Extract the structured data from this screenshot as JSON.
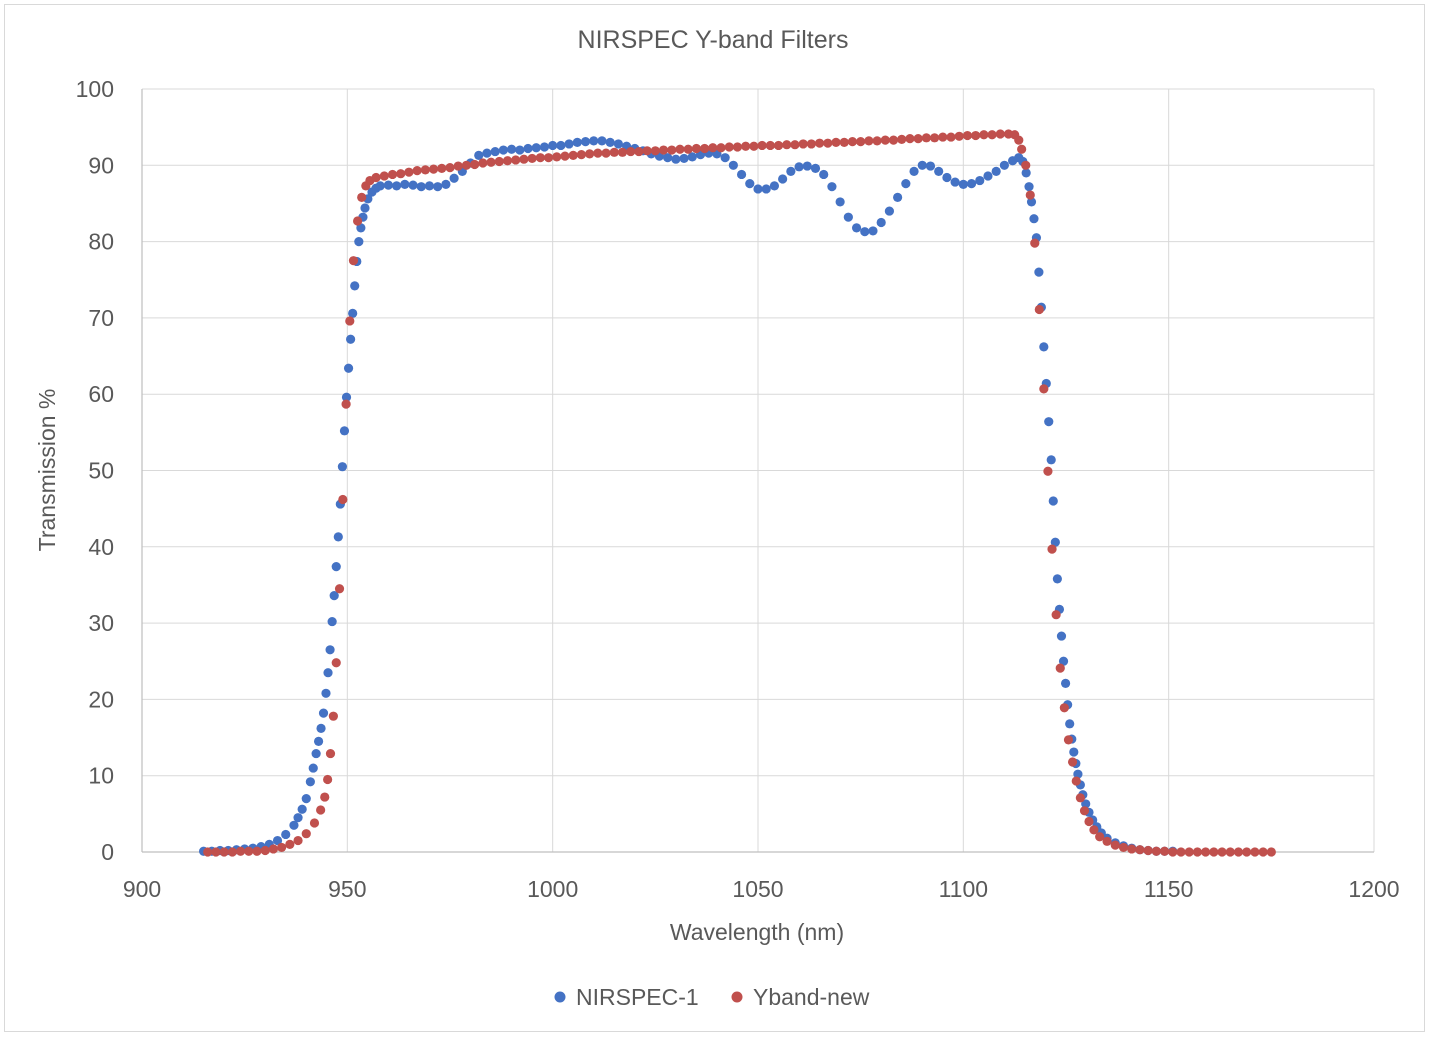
{
  "chart_data": {
    "type": "scatter",
    "title": "NIRSPEC Y-band Filters",
    "xlabel": "Wavelength (nm)",
    "ylabel": "Transmission %",
    "xlim": [
      900,
      1200
    ],
    "ylim": [
      0,
      100
    ],
    "xticks": [
      900,
      950,
      1000,
      1050,
      1100,
      1150,
      1200
    ],
    "yticks": [
      0,
      10,
      20,
      30,
      40,
      50,
      60,
      70,
      80,
      90,
      100
    ],
    "grid": true,
    "legend_position": "bottom",
    "series": [
      {
        "name": "NIRSPEC-1",
        "color": "#4472c4",
        "points": [
          [
            915,
            0.1
          ],
          [
            917,
            0.1
          ],
          [
            919,
            0.2
          ],
          [
            921,
            0.2
          ],
          [
            923,
            0.3
          ],
          [
            925,
            0.4
          ],
          [
            927,
            0.5
          ],
          [
            929,
            0.7
          ],
          [
            931,
            1.0
          ],
          [
            933,
            1.5
          ],
          [
            935,
            2.3
          ],
          [
            937,
            3.5
          ],
          [
            938,
            4.5
          ],
          [
            939,
            5.6
          ],
          [
            940,
            7.0
          ],
          [
            941,
            9.2
          ],
          [
            941.7,
            11.0
          ],
          [
            942.4,
            12.9
          ],
          [
            943,
            14.5
          ],
          [
            943.6,
            16.2
          ],
          [
            944.2,
            18.2
          ],
          [
            944.8,
            20.8
          ],
          [
            945.3,
            23.5
          ],
          [
            945.8,
            26.5
          ],
          [
            946.3,
            30.2
          ],
          [
            946.8,
            33.6
          ],
          [
            947.3,
            37.4
          ],
          [
            947.8,
            41.3
          ],
          [
            948.3,
            45.6
          ],
          [
            948.8,
            50.5
          ],
          [
            949.3,
            55.2
          ],
          [
            949.8,
            59.6
          ],
          [
            950.3,
            63.4
          ],
          [
            950.8,
            67.2
          ],
          [
            951.3,
            70.6
          ],
          [
            951.8,
            74.2
          ],
          [
            952.3,
            77.4
          ],
          [
            952.8,
            80.0
          ],
          [
            953.3,
            81.8
          ],
          [
            953.8,
            83.2
          ],
          [
            954.3,
            84.4
          ],
          [
            955,
            85.6
          ],
          [
            956,
            86.5
          ],
          [
            957,
            87.0
          ],
          [
            958,
            87.3
          ],
          [
            960,
            87.4
          ],
          [
            962,
            87.3
          ],
          [
            964,
            87.5
          ],
          [
            966,
            87.4
          ],
          [
            968,
            87.2
          ],
          [
            970,
            87.3
          ],
          [
            972,
            87.2
          ],
          [
            974,
            87.5
          ],
          [
            976,
            88.3
          ],
          [
            978,
            89.2
          ],
          [
            980,
            90.3
          ],
          [
            982,
            91.3
          ],
          [
            984,
            91.6
          ],
          [
            986,
            91.8
          ],
          [
            988,
            92.0
          ],
          [
            990,
            92.1
          ],
          [
            992,
            92.0
          ],
          [
            994,
            92.2
          ],
          [
            996,
            92.3
          ],
          [
            998,
            92.4
          ],
          [
            1000,
            92.6
          ],
          [
            1002,
            92.6
          ],
          [
            1004,
            92.8
          ],
          [
            1006,
            93.0
          ],
          [
            1008,
            93.1
          ],
          [
            1010,
            93.2
          ],
          [
            1012,
            93.2
          ],
          [
            1014,
            93.0
          ],
          [
            1016,
            92.8
          ],
          [
            1018,
            92.5
          ],
          [
            1020,
            92.2
          ],
          [
            1022,
            91.9
          ],
          [
            1024,
            91.5
          ],
          [
            1026,
            91.2
          ],
          [
            1028,
            91.0
          ],
          [
            1030,
            90.8
          ],
          [
            1032,
            90.9
          ],
          [
            1034,
            91.1
          ],
          [
            1036,
            91.4
          ],
          [
            1038,
            91.6
          ],
          [
            1040,
            91.5
          ],
          [
            1042,
            91.0
          ],
          [
            1044,
            90.0
          ],
          [
            1046,
            88.8
          ],
          [
            1048,
            87.6
          ],
          [
            1050,
            86.9
          ],
          [
            1052,
            86.9
          ],
          [
            1054,
            87.3
          ],
          [
            1056,
            88.2
          ],
          [
            1058,
            89.2
          ],
          [
            1060,
            89.8
          ],
          [
            1062,
            89.9
          ],
          [
            1064,
            89.6
          ],
          [
            1066,
            88.8
          ],
          [
            1068,
            87.2
          ],
          [
            1070,
            85.2
          ],
          [
            1072,
            83.2
          ],
          [
            1074,
            81.8
          ],
          [
            1076,
            81.3
          ],
          [
            1078,
            81.4
          ],
          [
            1080,
            82.5
          ],
          [
            1082,
            84.0
          ],
          [
            1084,
            85.8
          ],
          [
            1086,
            87.6
          ],
          [
            1088,
            89.2
          ],
          [
            1090,
            90.0
          ],
          [
            1092,
            89.9
          ],
          [
            1094,
            89.2
          ],
          [
            1096,
            88.4
          ],
          [
            1098,
            87.8
          ],
          [
            1100,
            87.5
          ],
          [
            1102,
            87.6
          ],
          [
            1104,
            88.0
          ],
          [
            1106,
            88.6
          ],
          [
            1108,
            89.2
          ],
          [
            1110,
            90.0
          ],
          [
            1112,
            90.6
          ],
          [
            1113.5,
            91.0
          ],
          [
            1114.5,
            90.5
          ],
          [
            1115.3,
            89.0
          ],
          [
            1116,
            87.2
          ],
          [
            1116.6,
            85.2
          ],
          [
            1117.2,
            83.0
          ],
          [
            1117.8,
            80.5
          ],
          [
            1118.4,
            76.0
          ],
          [
            1119,
            71.4
          ],
          [
            1119.6,
            66.2
          ],
          [
            1120.2,
            61.4
          ],
          [
            1120.8,
            56.4
          ],
          [
            1121.4,
            51.4
          ],
          [
            1121.9,
            46.0
          ],
          [
            1122.4,
            40.6
          ],
          [
            1122.9,
            35.8
          ],
          [
            1123.4,
            31.8
          ],
          [
            1123.9,
            28.3
          ],
          [
            1124.4,
            25.0
          ],
          [
            1124.9,
            22.1
          ],
          [
            1125.4,
            19.3
          ],
          [
            1125.9,
            16.8
          ],
          [
            1126.4,
            14.8
          ],
          [
            1126.9,
            13.1
          ],
          [
            1127.4,
            11.6
          ],
          [
            1127.9,
            10.2
          ],
          [
            1128.5,
            8.8
          ],
          [
            1129.1,
            7.5
          ],
          [
            1129.8,
            6.3
          ],
          [
            1130.6,
            5.2
          ],
          [
            1131.5,
            4.2
          ],
          [
            1132.5,
            3.3
          ],
          [
            1133.6,
            2.5
          ],
          [
            1135,
            1.8
          ],
          [
            1137,
            1.2
          ],
          [
            1139,
            0.8
          ],
          [
            1141,
            0.5
          ],
          [
            1143,
            0.3
          ],
          [
            1145,
            0.2
          ],
          [
            1147,
            0.1
          ],
          [
            1149,
            0.1
          ],
          [
            1151,
            0.1
          ]
        ]
      },
      {
        "name": "Yband-new",
        "color": "#c0504d",
        "points": [
          [
            916,
            0.0
          ],
          [
            918,
            0.0
          ],
          [
            920,
            0.0
          ],
          [
            922,
            0.0
          ],
          [
            924,
            0.1
          ],
          [
            926,
            0.1
          ],
          [
            928,
            0.1
          ],
          [
            930,
            0.2
          ],
          [
            932,
            0.4
          ],
          [
            934,
            0.6
          ],
          [
            936,
            1.0
          ],
          [
            938,
            1.5
          ],
          [
            940,
            2.4
          ],
          [
            942,
            3.8
          ],
          [
            943.5,
            5.5
          ],
          [
            944.5,
            7.2
          ],
          [
            945.2,
            9.5
          ],
          [
            945.9,
            12.9
          ],
          [
            946.6,
            17.8
          ],
          [
            947.3,
            24.8
          ],
          [
            948.1,
            34.5
          ],
          [
            948.9,
            46.2
          ],
          [
            949.7,
            58.7
          ],
          [
            950.6,
            69.6
          ],
          [
            951.5,
            77.5
          ],
          [
            952.5,
            82.7
          ],
          [
            953.5,
            85.8
          ],
          [
            954.5,
            87.3
          ],
          [
            955.5,
            88.0
          ],
          [
            957,
            88.4
          ],
          [
            959,
            88.6
          ],
          [
            961,
            88.8
          ],
          [
            963,
            88.9
          ],
          [
            965,
            89.1
          ],
          [
            967,
            89.3
          ],
          [
            969,
            89.4
          ],
          [
            971,
            89.5
          ],
          [
            973,
            89.6
          ],
          [
            975,
            89.7
          ],
          [
            977,
            89.9
          ],
          [
            979,
            90.0
          ],
          [
            981,
            90.1
          ],
          [
            983,
            90.3
          ],
          [
            985,
            90.4
          ],
          [
            987,
            90.5
          ],
          [
            989,
            90.6
          ],
          [
            991,
            90.7
          ],
          [
            993,
            90.8
          ],
          [
            995,
            90.9
          ],
          [
            997,
            91.0
          ],
          [
            999,
            91.0
          ],
          [
            1001,
            91.1
          ],
          [
            1003,
            91.2
          ],
          [
            1005,
            91.3
          ],
          [
            1007,
            91.4
          ],
          [
            1009,
            91.5
          ],
          [
            1011,
            91.6
          ],
          [
            1013,
            91.6
          ],
          [
            1015,
            91.7
          ],
          [
            1017,
            91.7
          ],
          [
            1019,
            91.8
          ],
          [
            1021,
            91.8
          ],
          [
            1023,
            91.9
          ],
          [
            1025,
            91.9
          ],
          [
            1027,
            92.0
          ],
          [
            1029,
            92.0
          ],
          [
            1031,
            92.1
          ],
          [
            1033,
            92.1
          ],
          [
            1035,
            92.2
          ],
          [
            1037,
            92.2
          ],
          [
            1039,
            92.3
          ],
          [
            1041,
            92.3
          ],
          [
            1043,
            92.4
          ],
          [
            1045,
            92.4
          ],
          [
            1047,
            92.5
          ],
          [
            1049,
            92.5
          ],
          [
            1051,
            92.6
          ],
          [
            1053,
            92.6
          ],
          [
            1055,
            92.6
          ],
          [
            1057,
            92.7
          ],
          [
            1059,
            92.7
          ],
          [
            1061,
            92.8
          ],
          [
            1063,
            92.8
          ],
          [
            1065,
            92.9
          ],
          [
            1067,
            92.9
          ],
          [
            1069,
            93.0
          ],
          [
            1071,
            93.0
          ],
          [
            1073,
            93.1
          ],
          [
            1075,
            93.1
          ],
          [
            1077,
            93.2
          ],
          [
            1079,
            93.2
          ],
          [
            1081,
            93.3
          ],
          [
            1083,
            93.3
          ],
          [
            1085,
            93.4
          ],
          [
            1087,
            93.5
          ],
          [
            1089,
            93.5
          ],
          [
            1091,
            93.6
          ],
          [
            1093,
            93.6
          ],
          [
            1095,
            93.7
          ],
          [
            1097,
            93.7
          ],
          [
            1099,
            93.8
          ],
          [
            1101,
            93.9
          ],
          [
            1103,
            93.9
          ],
          [
            1105,
            94.0
          ],
          [
            1107,
            94.0
          ],
          [
            1109,
            94.1
          ],
          [
            1111,
            94.1
          ],
          [
            1112.5,
            94.0
          ],
          [
            1113.5,
            93.3
          ],
          [
            1114.2,
            92.1
          ],
          [
            1115.2,
            90.0
          ],
          [
            1116.3,
            86.1
          ],
          [
            1117.4,
            79.8
          ],
          [
            1118.5,
            71.1
          ],
          [
            1119.6,
            60.7
          ],
          [
            1120.6,
            49.9
          ],
          [
            1121.6,
            39.7
          ],
          [
            1122.6,
            31.1
          ],
          [
            1123.6,
            24.1
          ],
          [
            1124.6,
            18.9
          ],
          [
            1125.6,
            14.7
          ],
          [
            1126.6,
            11.8
          ],
          [
            1127.5,
            9.3
          ],
          [
            1128.5,
            7.1
          ],
          [
            1129.5,
            5.4
          ],
          [
            1130.6,
            4.0
          ],
          [
            1131.8,
            2.9
          ],
          [
            1133.2,
            2.0
          ],
          [
            1135,
            1.4
          ],
          [
            1137,
            0.9
          ],
          [
            1139,
            0.6
          ],
          [
            1141,
            0.4
          ],
          [
            1143,
            0.3
          ],
          [
            1145,
            0.2
          ],
          [
            1147,
            0.1
          ],
          [
            1149,
            0.1
          ],
          [
            1151,
            0.0
          ],
          [
            1153,
            0.0
          ],
          [
            1155,
            0.0
          ],
          [
            1157,
            0.0
          ],
          [
            1159,
            0.0
          ],
          [
            1161,
            0.0
          ],
          [
            1163,
            0.0
          ],
          [
            1165,
            0.0
          ],
          [
            1167,
            0.0
          ],
          [
            1169,
            0.0
          ],
          [
            1171,
            0.0
          ],
          [
            1173,
            0.0
          ],
          [
            1175,
            0.0
          ]
        ]
      }
    ]
  }
}
